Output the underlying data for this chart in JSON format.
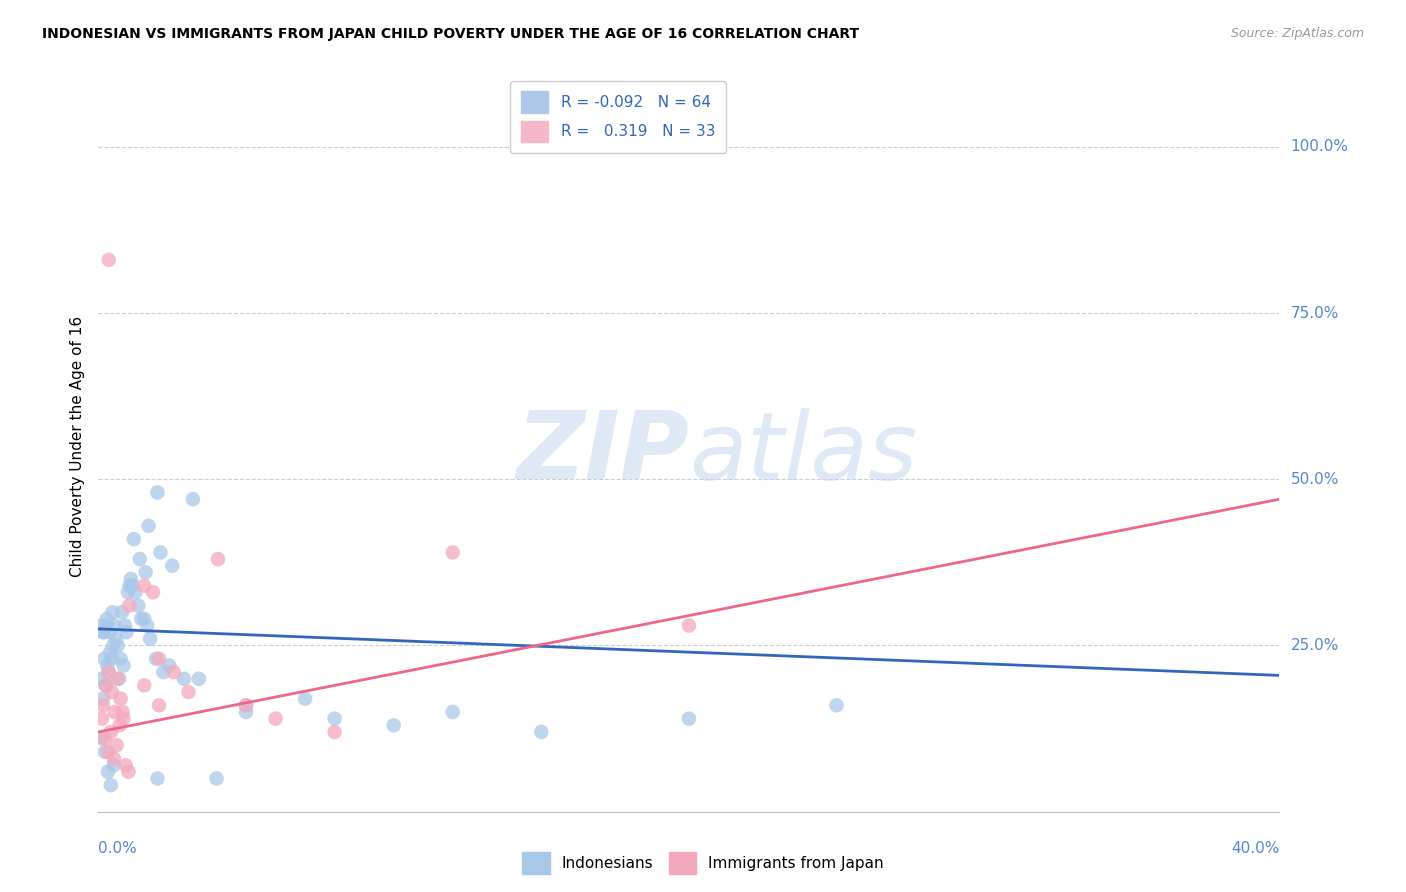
{
  "title": "INDONESIAN VS IMMIGRANTS FROM JAPAN CHILD POVERTY UNDER THE AGE OF 16 CORRELATION CHART",
  "source": "Source: ZipAtlas.com",
  "ylabel": "Child Poverty Under the Age of 16",
  "ytick_labels": [
    "100.0%",
    "75.0%",
    "50.0%",
    "25.0%"
  ],
  "ytick_values": [
    100,
    75,
    50,
    25
  ],
  "xlim": [
    0,
    40
  ],
  "ylim": [
    0,
    110
  ],
  "legend_entries": [
    {
      "label_r": "R = -0.092",
      "label_n": "N = 64",
      "color": "#aec6e8"
    },
    {
      "label_r": "R =   0.319",
      "label_n": "N = 33",
      "color": "#f4b8c8"
    }
  ],
  "legend_labels_bottom": [
    "Indonesians",
    "Immigrants from Japan"
  ],
  "watermark_zip": "ZIP",
  "watermark_atlas": "atlas",
  "blue_color": "#a8c8e8",
  "pink_color": "#f4a8bc",
  "blue_line_color": "#3366bb",
  "pink_line_color": "#ee6688",
  "blue_line_dash": true,
  "blue_line": [
    [
      0,
      27.5
    ],
    [
      40,
      20.5
    ]
  ],
  "pink_line": [
    [
      0,
      12
    ],
    [
      40,
      47
    ]
  ],
  "blue_scatter": [
    [
      0.15,
      27
    ],
    [
      0.3,
      28
    ],
    [
      0.5,
      25
    ],
    [
      0.2,
      23
    ],
    [
      0.1,
      20
    ],
    [
      0.3,
      22
    ],
    [
      0.4,
      24
    ],
    [
      0.6,
      26
    ],
    [
      0.8,
      30
    ],
    [
      1.0,
      33
    ],
    [
      0.15,
      17
    ],
    [
      0.25,
      19
    ],
    [
      0.35,
      21
    ],
    [
      0.45,
      23
    ],
    [
      0.7,
      20
    ],
    [
      0.9,
      28
    ],
    [
      1.1,
      35
    ],
    [
      1.4,
      38
    ],
    [
      1.6,
      36
    ],
    [
      2.0,
      48
    ],
    [
      1.2,
      41
    ],
    [
      1.7,
      43
    ],
    [
      2.1,
      39
    ],
    [
      2.5,
      37
    ],
    [
      3.2,
      47
    ],
    [
      0.12,
      28
    ],
    [
      0.18,
      27
    ],
    [
      0.28,
      29
    ],
    [
      0.38,
      27
    ],
    [
      0.48,
      30
    ],
    [
      0.55,
      28
    ],
    [
      0.65,
      25
    ],
    [
      0.75,
      23
    ],
    [
      0.85,
      22
    ],
    [
      0.95,
      27
    ],
    [
      1.05,
      34
    ],
    [
      1.15,
      34
    ],
    [
      1.25,
      33
    ],
    [
      1.35,
      31
    ],
    [
      1.45,
      29
    ],
    [
      1.55,
      29
    ],
    [
      1.65,
      28
    ],
    [
      1.75,
      26
    ],
    [
      1.95,
      23
    ],
    [
      2.2,
      21
    ],
    [
      2.4,
      22
    ],
    [
      2.9,
      20
    ],
    [
      3.4,
      20
    ],
    [
      5.0,
      15
    ],
    [
      7.0,
      17
    ],
    [
      10.0,
      13
    ],
    [
      12.0,
      15
    ],
    [
      15.0,
      12
    ],
    [
      20.0,
      14
    ],
    [
      25.0,
      16
    ],
    [
      0.12,
      11
    ],
    [
      0.22,
      9
    ],
    [
      0.32,
      6
    ],
    [
      0.42,
      4
    ],
    [
      0.52,
      7
    ],
    [
      5.0,
      16
    ],
    [
      8.0,
      14
    ],
    [
      2.0,
      5
    ],
    [
      4.0,
      5
    ]
  ],
  "pink_scatter": [
    [
      0.12,
      14
    ],
    [
      0.22,
      11
    ],
    [
      0.32,
      9
    ],
    [
      0.42,
      12
    ],
    [
      0.52,
      8
    ],
    [
      0.62,
      10
    ],
    [
      0.72,
      13
    ],
    [
      0.82,
      15
    ],
    [
      0.92,
      7
    ],
    [
      1.02,
      6
    ],
    [
      0.15,
      16
    ],
    [
      0.25,
      19
    ],
    [
      0.35,
      21
    ],
    [
      0.45,
      18
    ],
    [
      0.55,
      15
    ],
    [
      0.65,
      20
    ],
    [
      0.75,
      17
    ],
    [
      0.85,
      14
    ],
    [
      1.05,
      31
    ],
    [
      1.55,
      34
    ],
    [
      2.05,
      23
    ],
    [
      2.55,
      21
    ],
    [
      1.55,
      19
    ],
    [
      2.05,
      16
    ],
    [
      3.05,
      18
    ],
    [
      1.85,
      33
    ],
    [
      4.05,
      38
    ],
    [
      0.35,
      83
    ],
    [
      5.0,
      16
    ],
    [
      6.0,
      14
    ],
    [
      8.0,
      12
    ],
    [
      12.0,
      39
    ],
    [
      20.0,
      28
    ]
  ]
}
